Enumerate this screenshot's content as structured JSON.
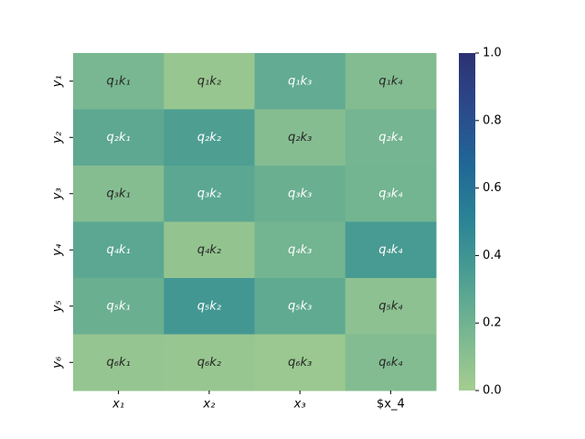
{
  "chart_data": {
    "type": "heatmap",
    "x_categories": [
      "x₁",
      "x₂",
      "x₃",
      "$x_4"
    ],
    "y_categories": [
      "y₁",
      "y₂",
      "y₃",
      "y₄",
      "y₅",
      "y₆"
    ],
    "values": [
      [
        0.17,
        0.05,
        0.25,
        0.13
      ],
      [
        0.27,
        0.33,
        0.12,
        0.18
      ],
      [
        0.12,
        0.28,
        0.22,
        0.19
      ],
      [
        0.28,
        0.07,
        0.19,
        0.36
      ],
      [
        0.22,
        0.38,
        0.26,
        0.09
      ],
      [
        0.06,
        0.05,
        0.04,
        0.13
      ]
    ],
    "annotations": [
      [
        "q₁k₁",
        "q₁k₂",
        "q₁k₃",
        "q₁k₄"
      ],
      [
        "q₂k₁",
        "q₂k₂",
        "q₂k₃",
        "q₂k₄"
      ],
      [
        "q₃k₁",
        "q₃k₂",
        "q₃k₃",
        "q₃k₄"
      ],
      [
        "q₄k₁",
        "q₄k₂",
        "q₄k₃",
        "q₄k₄"
      ],
      [
        "q₅k₁",
        "q₅k₂",
        "q₅k₃",
        "q₅k₄"
      ],
      [
        "q₆k₁",
        "q₆k₂",
        "q₆k₃",
        "q₆k₄"
      ]
    ],
    "colormap": [
      "#a5cd90",
      "#79b791",
      "#4d9f92",
      "#2b8495",
      "#206796",
      "#2b4a8c",
      "#2c3172"
    ],
    "clim": [
      0,
      1
    ],
    "cticks": [
      {
        "value": 0,
        "label": "0.0"
      },
      {
        "value": 0.2,
        "label": "0.2"
      },
      {
        "value": 0.4,
        "label": "0.4"
      },
      {
        "value": 0.6,
        "label": "0.6"
      },
      {
        "value": 0.8,
        "label": "0.8"
      },
      {
        "value": 1,
        "label": "1.0"
      }
    ]
  }
}
